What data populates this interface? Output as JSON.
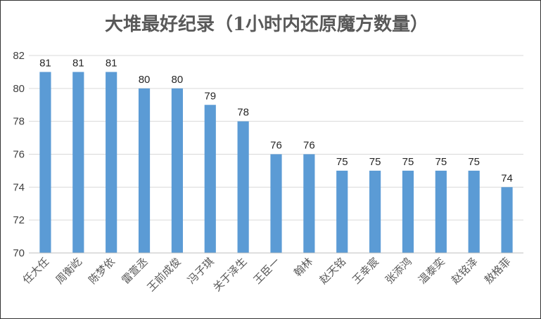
{
  "chart_data": {
    "type": "bar",
    "title": "大堆最好纪录（1小时内还原魔方数量）",
    "categories": [
      "任大任",
      "周衡屹",
      "陈梦依",
      "雷萱丞",
      "王前成俊",
      "冯子琪",
      "关于泽生",
      "王臣一",
      "翰林",
      "赵天铭",
      "王幸宸",
      "张添鸿",
      "温泰奕",
      "赵铭泽",
      "敖格菲"
    ],
    "values": [
      81,
      81,
      81,
      80,
      80,
      79,
      78,
      76,
      76,
      75,
      75,
      75,
      75,
      75,
      74
    ],
    "ylim": [
      70,
      82
    ],
    "yticks": [
      70,
      72,
      74,
      76,
      78,
      80,
      82
    ],
    "xlabel": "",
    "ylabel": "",
    "grid": true,
    "bar_color": "#5b9bd5"
  }
}
